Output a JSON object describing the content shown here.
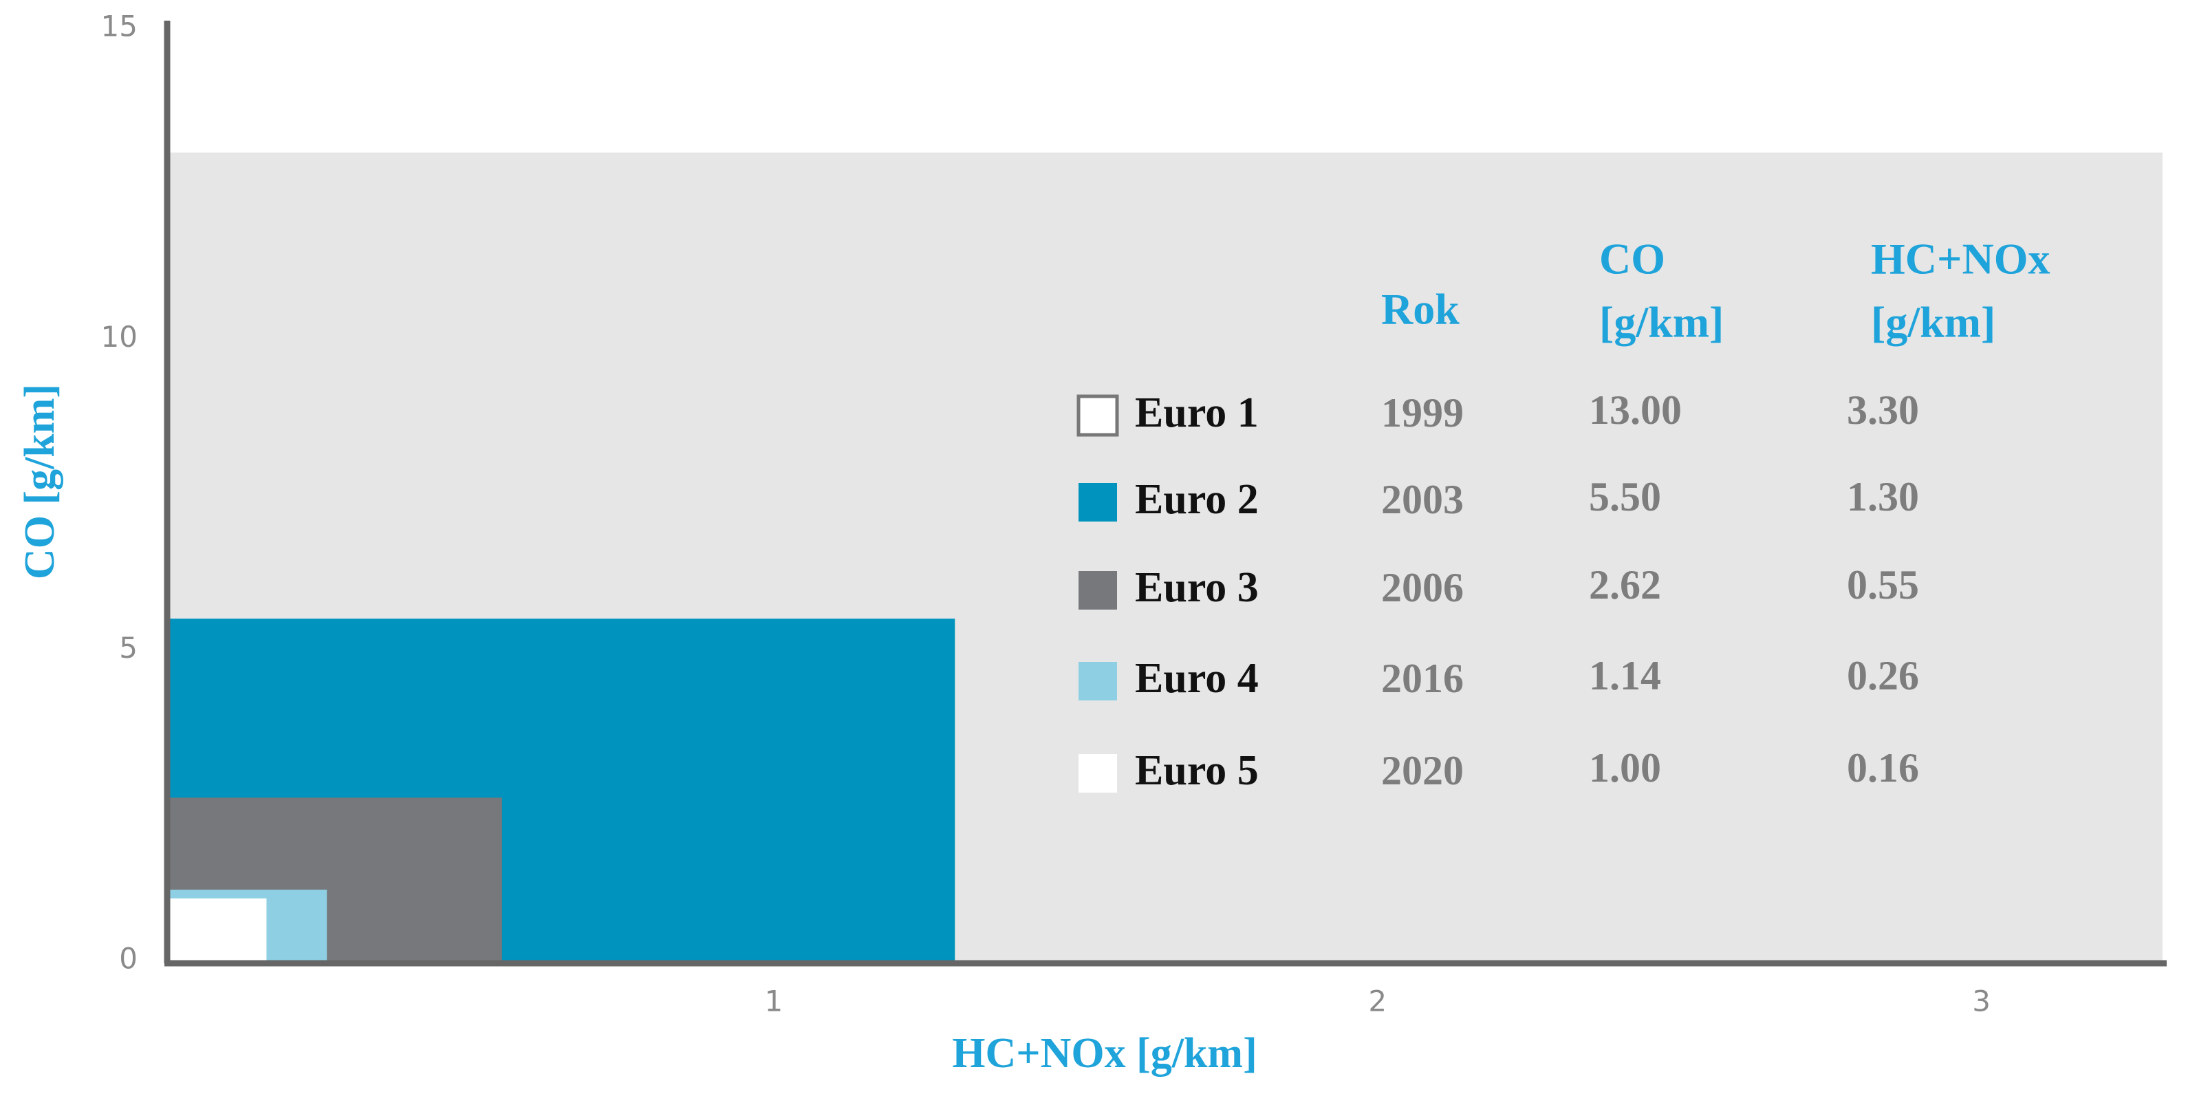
{
  "chart_data": {
    "type": "nested-rect",
    "x_label": "HC+NOx [g/km]",
    "y_label": "CO [g/km]",
    "xlim": [
      0,
      3.3
    ],
    "ylim": [
      0,
      15
    ],
    "xticks": [
      1,
      2,
      3
    ],
    "yticks": [
      0,
      5,
      10,
      15
    ],
    "table_header": [
      [
        "Rok"
      ],
      [
        "CO",
        "[g/km]"
      ],
      [
        "HC+NOx",
        "[g/km]"
      ]
    ],
    "series": [
      {
        "name": "Euro 1",
        "color": "#e6e6e6",
        "swatch_color": "#ffffff",
        "year": "1999",
        "co": 13,
        "co_label": "13.00",
        "hc_nox": 3.3,
        "hc_nox_label": "3.30"
      },
      {
        "name": "Euro 2",
        "color": "#0093bd",
        "swatch_color": "#0093bd",
        "year": "2003",
        "co": 5.5,
        "co_label": "5.50",
        "hc_nox": 1.3,
        "hc_nox_label": "1.30"
      },
      {
        "name": "Euro 3",
        "color": "#77787b",
        "swatch_color": "#77787b",
        "year": "2006",
        "co": 2.62,
        "co_label": "2.62",
        "hc_nox": 0.55,
        "hc_nox_label": "0.55"
      },
      {
        "name": "Euro 4",
        "color": "#8ecfe3",
        "swatch_color": "#8ecfe3",
        "year": "2016",
        "co": 1.14,
        "co_label": "1.14",
        "hc_nox": 0.26,
        "hc_nox_label": "0.26"
      },
      {
        "name": "Euro 5",
        "color": "#ffffff",
        "swatch_color": "#ffffff",
        "year": "2020",
        "co": 1,
        "co_label": "1.00",
        "hc_nox": 0.16,
        "hc_nox_label": "0.16"
      }
    ]
  }
}
